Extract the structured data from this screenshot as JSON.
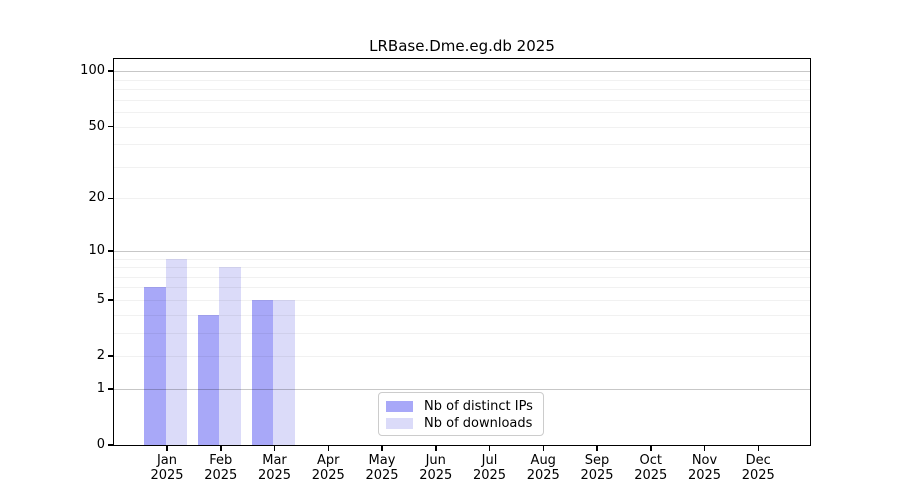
{
  "chart_data": {
    "type": "bar",
    "title": "LRBase.Dme.eg.db 2025",
    "categories": [
      "Jan",
      "Feb",
      "Mar",
      "Apr",
      "May",
      "Jun",
      "Jul",
      "Aug",
      "Sep",
      "Oct",
      "Nov",
      "Dec"
    ],
    "category_year": "2025",
    "series": [
      {
        "name": "Nb of distinct IPs",
        "color": "#a8a8f8",
        "values": [
          6,
          4,
          5,
          0,
          0,
          0,
          0,
          0,
          0,
          0,
          0,
          0
        ]
      },
      {
        "name": "Nb of downloads",
        "color": "#dbdbf9",
        "values": [
          9,
          8,
          5,
          0,
          0,
          0,
          0,
          0,
          0,
          0,
          0,
          0
        ]
      }
    ],
    "xlabel": "",
    "ylabel": "",
    "yscale": "log1p",
    "ylim": [
      0,
      116
    ],
    "y_tick_labels": [
      "0",
      "1",
      "2",
      "5",
      "10",
      "20",
      "50",
      "100"
    ],
    "y_tick_values": [
      0,
      1,
      2,
      5,
      10,
      20,
      50,
      100
    ],
    "grid": "horizontal",
    "major_gridline_values": [
      1,
      10,
      100
    ],
    "minor_gridline_values": [
      2,
      3,
      4,
      5,
      6,
      7,
      8,
      9,
      20,
      30,
      40,
      50,
      60,
      70,
      80,
      90
    ],
    "legend_position": "lower center"
  }
}
